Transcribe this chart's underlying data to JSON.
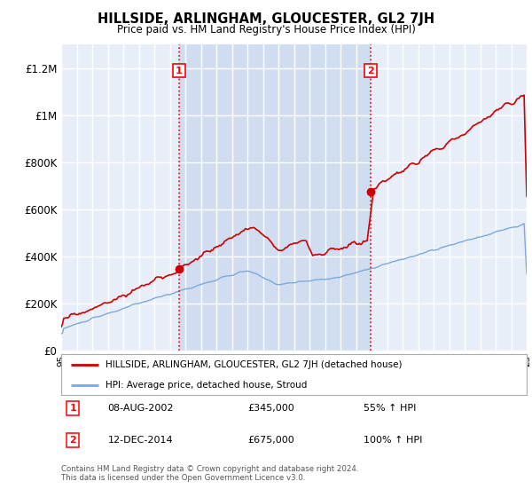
{
  "title": "HILLSIDE, ARLINGHAM, GLOUCESTER, GL2 7JH",
  "subtitle": "Price paid vs. HM Land Registry's House Price Index (HPI)",
  "ylim": [
    0,
    1300000
  ],
  "yticks": [
    0,
    200000,
    400000,
    600000,
    800000,
    1000000,
    1200000
  ],
  "ytick_labels": [
    "£0",
    "£200K",
    "£400K",
    "£600K",
    "£800K",
    "£1M",
    "£1.2M"
  ],
  "background_color": "#ffffff",
  "plot_bg_color": "#e8eef8",
  "shade_color": "#d0ddf0",
  "grid_color": "#ffffff",
  "legend_label_red": "HILLSIDE, ARLINGHAM, GLOUCESTER, GL2 7JH (detached house)",
  "legend_label_blue": "HPI: Average price, detached house, Stroud",
  "sale1_date": "08-AUG-2002",
  "sale1_price": "£345,000",
  "sale1_hpi": "55% ↑ HPI",
  "sale2_date": "12-DEC-2014",
  "sale2_price": "£675,000",
  "sale2_hpi": "100% ↑ HPI",
  "footer": "Contains HM Land Registry data © Crown copyright and database right 2024.\nThis data is licensed under the Open Government Licence v3.0.",
  "red_color": "#cc0000",
  "blue_color": "#7aaadd",
  "marker1_x": 2002.6,
  "marker1_y": 345000,
  "marker2_x": 2014.95,
  "marker2_y": 675000,
  "xmin": 1995,
  "xmax": 2025
}
